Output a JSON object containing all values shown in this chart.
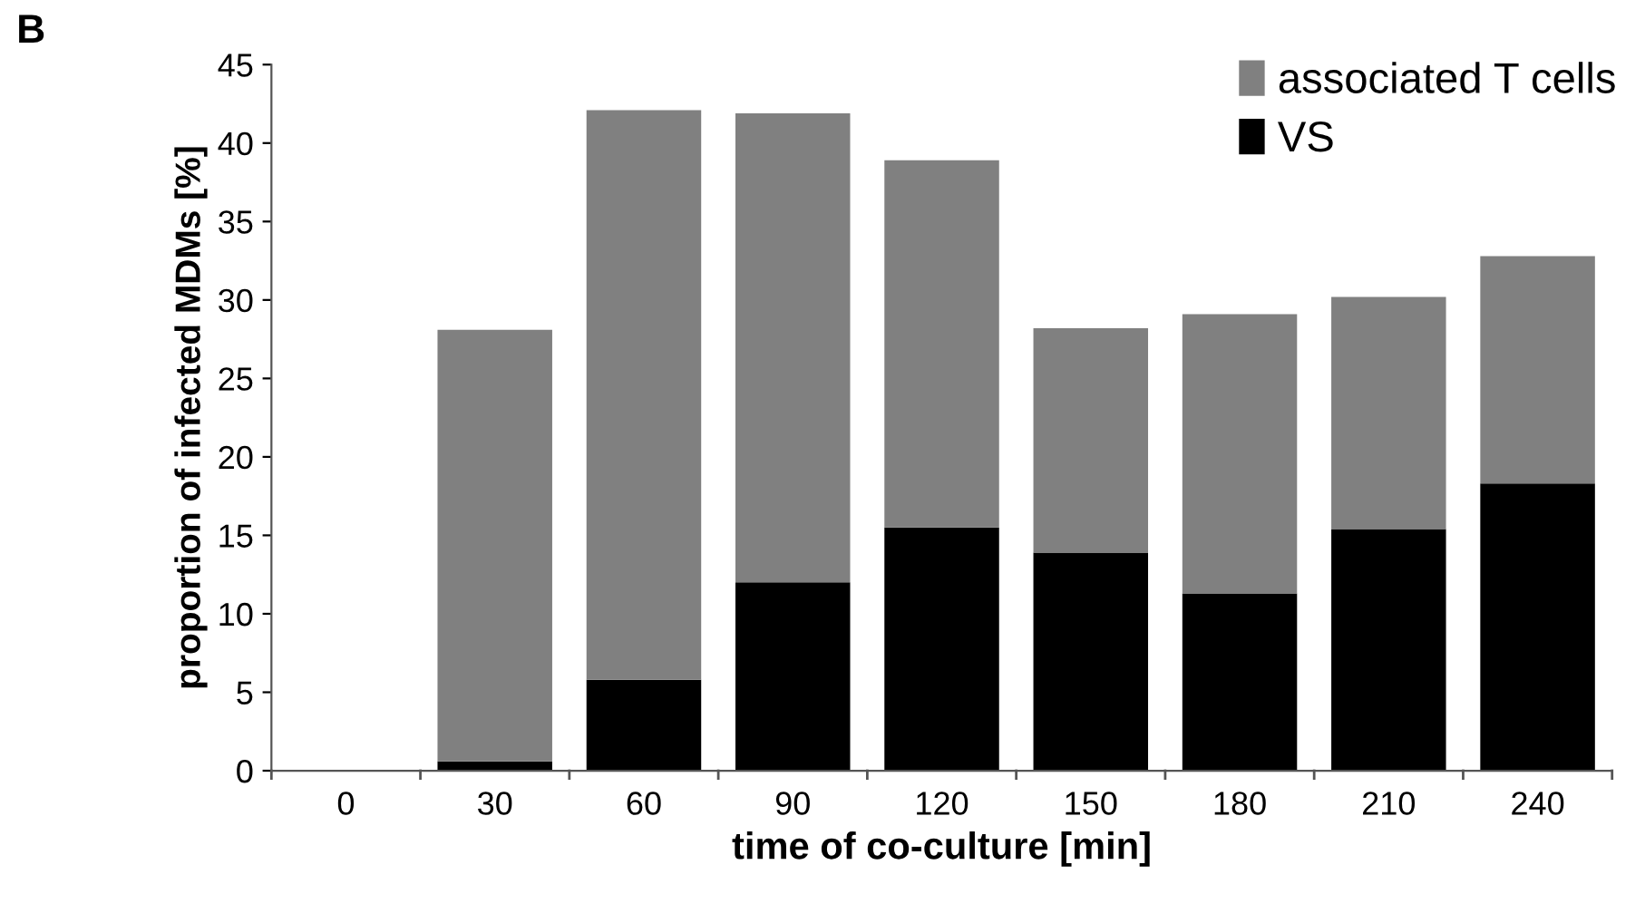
{
  "chart_data": {
    "type": "bar",
    "stacked": true,
    "xlabel": "time of co-culture [min]",
    "ylabel": "proportion of infected MDMs [%]",
    "annotations": [
      "B"
    ],
    "categories": [
      "0",
      "30",
      "60",
      "90",
      "120",
      "150",
      "180",
      "210",
      "240"
    ],
    "series": [
      {
        "name": "VS",
        "color": "#000000",
        "values": [
          0,
          0.6,
          5.8,
          12.0,
          15.5,
          13.9,
          11.3,
          15.4,
          18.3
        ]
      },
      {
        "name": "associated T cells",
        "color": "#808080",
        "values": [
          0,
          27.5,
          36.3,
          29.9,
          23.4,
          14.3,
          17.8,
          14.8,
          14.5
        ]
      }
    ],
    "ylim": [
      0,
      45
    ],
    "yticks": [
      0,
      5,
      10,
      15,
      20,
      25,
      30,
      35,
      40,
      45
    ],
    "grid": false,
    "legend": "top right"
  }
}
